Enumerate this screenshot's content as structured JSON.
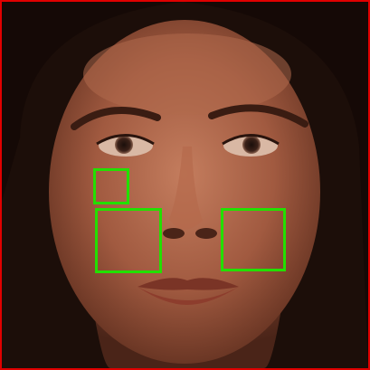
{
  "image": {
    "subject": "face-photo",
    "frame_color": "#e00000",
    "box_color": "#22e000",
    "box_count": 3
  }
}
